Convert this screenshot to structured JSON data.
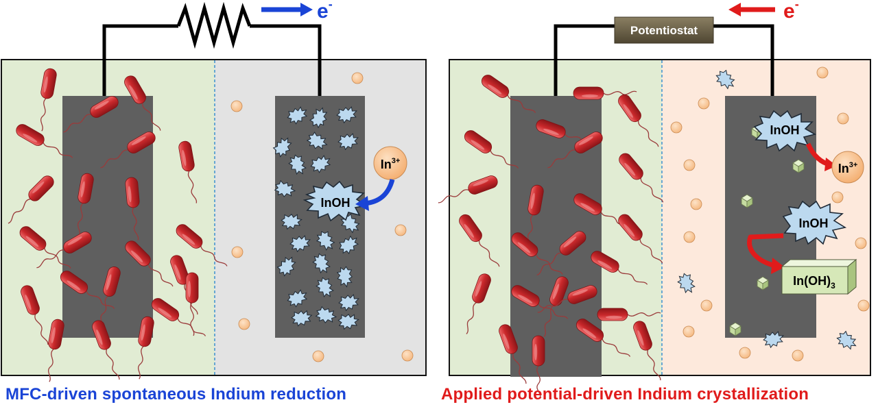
{
  "colors": {
    "mfc_blue": "#1a44d6",
    "potential_red": "#e01b1b",
    "bacteria_red": "#c9282b",
    "anode_green_bg": "#e1ecd3",
    "cathode_gray_bg": "#e3e3e3",
    "cathode_peach_bg": "#fde9dc",
    "electrode_gray": "#5f5f5f",
    "ion_peach": "#f9c694",
    "crystal_blue": "#bcd9ef",
    "hydroxide_green": "#d6e8b8",
    "potentiostat_brown": "#6e6348"
  },
  "left_panel": {
    "electron_label": "e",
    "electron_sup": "-",
    "ion_label": "In",
    "ion_sup": "3+",
    "inoh_label": "InOH",
    "caption": "MFC-driven spontaneous Indium reduction"
  },
  "right_panel": {
    "potentiostat_label": "Potentiostat",
    "electron_label": "e",
    "electron_sup": "-",
    "inoh_top_label": "InOH",
    "ion_label": "In",
    "ion_sup": "3+",
    "inoh_mid_label": "InOH",
    "hydroxide_label": "In(OH)",
    "hydroxide_sub": "3",
    "caption": "Applied potential-driven Indium crystallization"
  }
}
